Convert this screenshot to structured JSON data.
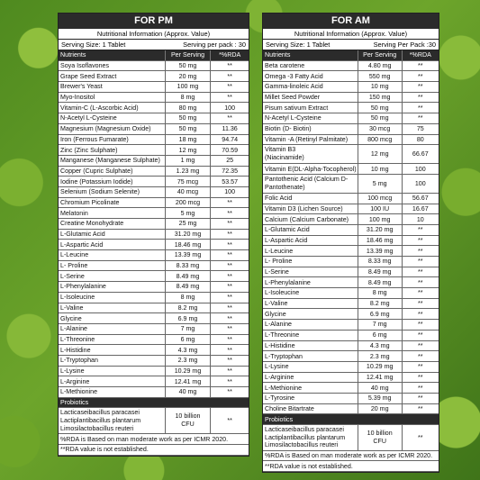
{
  "pm": {
    "title": "FOR PM",
    "subtitle": "Nutritional Information (Approx. Value)",
    "serving_size": "Serving Size: 1 Tablet",
    "servings_per_pack": "Serving per pack : 30",
    "headers": [
      "Nutrients",
      "Per Serving",
      "*%RDA"
    ],
    "rows": [
      [
        "Soya Isoflavones",
        "50 mg",
        "**"
      ],
      [
        "Grape Seed Extract",
        "20 mg",
        "**"
      ],
      [
        "Brewer's Yeast",
        "100 mg",
        "**"
      ],
      [
        "Myo-Inositol",
        "8 mg",
        "**"
      ],
      [
        "Vitamin-C (L-Ascorbic Acid)",
        "80 mg",
        "100"
      ],
      [
        "N-Acetyl L-Cysteine",
        "50 mg",
        "**"
      ],
      [
        "Magnesium (Magnesium Oxide)",
        "50 mg",
        "11.36"
      ],
      [
        "Iron (Ferrous Fumarate)",
        "18 mg",
        "94.74"
      ],
      [
        "Zinc (Zinc Sulphate)",
        "12 mg",
        "70.59"
      ],
      [
        "Manganese (Manganese Sulphate)",
        "1 mg",
        "25"
      ],
      [
        "Copper (Cupric Sulphate)",
        "1.23 mg",
        "72.35"
      ],
      [
        "Iodine (Potassium Iodide)",
        "75 mcg",
        "53.57"
      ],
      [
        "Selenium (Sodium Selenite)",
        "40 mcg",
        "100"
      ],
      [
        "Chromium Picolinate",
        "200 mcg",
        "**"
      ],
      [
        "Melatonin",
        "5 mg",
        "**"
      ],
      [
        "Creatine Monohydrate",
        "25 mg",
        "**"
      ],
      [
        "L-Glutamic Acid",
        "31.20 mg",
        "**"
      ],
      [
        "L-Aspartic Acid",
        "18.46 mg",
        "**"
      ],
      [
        "L-Leucine",
        "13.39 mg",
        "**"
      ],
      [
        "L- Proline",
        "8.33 mg",
        "**"
      ],
      [
        "L-Serine",
        "8.49 mg",
        "**"
      ],
      [
        "L-Phenylalanine",
        "8.49 mg",
        "**"
      ],
      [
        "L-Isoleucine",
        "8 mg",
        "**"
      ],
      [
        "L-Valine",
        "8.2 mg",
        "**"
      ],
      [
        "Glycine",
        "6.9 mg",
        "**"
      ],
      [
        "L-Alanine",
        "7 mg",
        "**"
      ],
      [
        "L-Threonine",
        "6 mg",
        "**"
      ],
      [
        "L-Histidine",
        "4.3 mg",
        "**"
      ],
      [
        "L-Tryptophan",
        "2.3 mg",
        "**"
      ],
      [
        "L-Lysine",
        "10.29 mg",
        "**"
      ],
      [
        "L-Arginine",
        "12.41 mg",
        "**"
      ],
      [
        "L-Methionine",
        "40 mg",
        "**"
      ]
    ],
    "probiotics_label": "Probiotics",
    "probiotics_name": "Lacticaseibacillus paracasei\nLactiplantibacillus plantarum\nLimosilactobacillus reuteri",
    "probiotics_amount": "10 billion\nCFU",
    "probiotics_rda": "**",
    "note1": "%RDA is Based on man moderate work as per ICMR 2020.",
    "note2": "**RDA value is not established."
  },
  "am": {
    "title": "FOR AM",
    "subtitle": "Nutritional Information (Approx. Value)",
    "serving_size": "Serving Size: 1 Tablet",
    "servings_per_pack": "Serving Per  Pack :30",
    "headers": [
      "Nutrients",
      "Per Serving",
      "*%RDA"
    ],
    "rows": [
      [
        "Beta carotene",
        "4.80 mg",
        "**"
      ],
      [
        "Omega -3 Fatty Acid",
        "550 mg",
        "**"
      ],
      [
        "Gamma-linoleic Acid",
        "10 mg",
        "**"
      ],
      [
        "Millet Seed Powder",
        "150 mg",
        "**"
      ],
      [
        "Pisum sativum Extract",
        "50 mg",
        "**"
      ],
      [
        "N-Acetyl L-Cysteine",
        "50 mg",
        "**"
      ],
      [
        "Biotin (D- Biotin)",
        "30 mcg",
        "75"
      ],
      [
        "Vitamin -A (Retinyl Palmitate)",
        "800 mcg",
        "80"
      ],
      [
        "Vitamin B3\n(Niacinamide)",
        "12 mg",
        "66.67"
      ],
      [
        "Vitamin E(DL-Alpha-Tocopherol)",
        "10 mg",
        "100"
      ],
      [
        "Pantothenic Acid (Calcium D-\nPantothenate)",
        "5 mg",
        "100"
      ],
      [
        "Folic Acid",
        "100 mcg",
        "56.67"
      ],
      [
        "Vitamin D3 (Lichen Source)",
        "100 IU",
        "16.67"
      ],
      [
        "Calcium (Calcium Carbonate)",
        "100 mg",
        "10"
      ],
      [
        "L-Glutamic Acid",
        "31.20 mg",
        "**"
      ],
      [
        "L-Aspartic Acid",
        "18.46 mg",
        "**"
      ],
      [
        "L-Leucine",
        "13.39 mg",
        "**"
      ],
      [
        "L- Proline",
        "8.33 mg",
        "**"
      ],
      [
        "L-Serine",
        "8.49 mg",
        "**"
      ],
      [
        "L-Phenylalanine",
        "8.49 mg",
        "**"
      ],
      [
        "L-Isoleucine",
        "8 mg",
        "**"
      ],
      [
        "L-Valine",
        "8.2 mg",
        "**"
      ],
      [
        "Glycine",
        "6.9 mg",
        "**"
      ],
      [
        "L-Alanine",
        "7 mg",
        "**"
      ],
      [
        "L-Threonine",
        "6 mg",
        "**"
      ],
      [
        "L-Histidine",
        "4.3 mg",
        "**"
      ],
      [
        "L-Tryptophan",
        "2.3 mg",
        "**"
      ],
      [
        "L-Lysine",
        "10.29 mg",
        "**"
      ],
      [
        "L-Arginine",
        "12.41 mg",
        "**"
      ],
      [
        "L-Methionine",
        "40 mg",
        "**"
      ],
      [
        "L-Tyrosine",
        "5.39 mg",
        "**"
      ],
      [
        "Choline Bitartrate",
        "20 mg",
        "**"
      ]
    ],
    "probiotics_label": "Probiotics",
    "probiotics_name": "Lacticaseibacillus paracasei\nLactiplantibacillus plantarum\nLimosilactobacillus reuteri",
    "probiotics_amount": "10 billion\nCFU",
    "probiotics_rda": "**",
    "note1": "%RDA is Based on man moderate work as per ICMR 2020.",
    "note2": "**RDA value is not established."
  }
}
